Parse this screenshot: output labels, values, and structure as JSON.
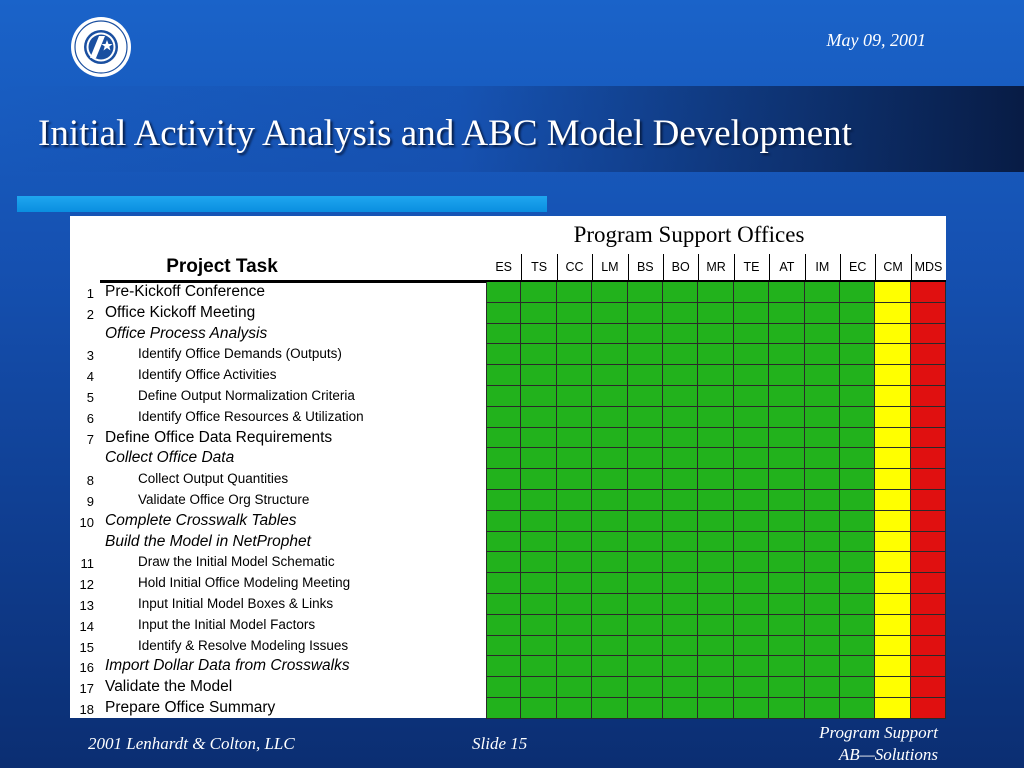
{
  "header": {
    "date": "May 09, 2001",
    "title": "Initial Activity Analysis and ABC Model Development"
  },
  "table": {
    "super_header": "Program Support Offices",
    "task_header": "Project Task",
    "offices": [
      {
        "code": "ES",
        "color": "#22b21c"
      },
      {
        "code": "TS",
        "color": "#22b21c"
      },
      {
        "code": "CC",
        "color": "#22b21c"
      },
      {
        "code": "LM",
        "color": "#22b21c"
      },
      {
        "code": "BS",
        "color": "#22b21c"
      },
      {
        "code": "BO",
        "color": "#22b21c"
      },
      {
        "code": "MR",
        "color": "#22b21c"
      },
      {
        "code": "TE",
        "color": "#22b21c"
      },
      {
        "code": "AT",
        "color": "#22b21c"
      },
      {
        "code": "IM",
        "color": "#22b21c"
      },
      {
        "code": "EC",
        "color": "#22b21c"
      },
      {
        "code": "CM",
        "color": "#ffff00"
      },
      {
        "code": "MDS",
        "color": "#e01010"
      }
    ],
    "rows": [
      {
        "num": "1",
        "task": "Pre-Kickoff Conference",
        "level": 0,
        "italic": false
      },
      {
        "num": "2",
        "task": "Office Kickoff Meeting",
        "level": 0,
        "italic": false
      },
      {
        "num": "",
        "task": "Office Process Analysis",
        "level": 0,
        "italic": true
      },
      {
        "num": "3",
        "task": "Identify Office Demands (Outputs)",
        "level": 1,
        "italic": false
      },
      {
        "num": "4",
        "task": "Identify Office Activities",
        "level": 1,
        "italic": false
      },
      {
        "num": "5",
        "task": "Define Output Normalization Criteria",
        "level": 1,
        "italic": false
      },
      {
        "num": "6",
        "task": "Identify Office Resources & Utilization",
        "level": 1,
        "italic": false
      },
      {
        "num": "7",
        "task": "Define Office Data Requirements",
        "level": 0,
        "italic": false
      },
      {
        "num": "",
        "task": "Collect Office Data",
        "level": 0,
        "italic": true
      },
      {
        "num": "8",
        "task": "Collect Output Quantities",
        "level": 1,
        "italic": false
      },
      {
        "num": "9",
        "task": "Validate Office Org Structure",
        "level": 1,
        "italic": false
      },
      {
        "num": "10",
        "task": "Complete Crosswalk Tables",
        "level": 0,
        "italic": true
      },
      {
        "num": "",
        "task": "Build the Model in NetProphet",
        "level": 0,
        "italic": true
      },
      {
        "num": "11",
        "task": "Draw the Initial Model Schematic",
        "level": 1,
        "italic": false
      },
      {
        "num": "12",
        "task": "Hold Initial Office Modeling Meeting",
        "level": 1,
        "italic": false
      },
      {
        "num": "13",
        "task": "Input Initial Model Boxes & Links",
        "level": 1,
        "italic": false
      },
      {
        "num": "14",
        "task": "Input the Initial Model Factors",
        "level": 1,
        "italic": false
      },
      {
        "num": "15",
        "task": "Identify & Resolve Modeling Issues",
        "level": 1,
        "italic": false
      },
      {
        "num": "16",
        "task": "Import Dollar Data from Crosswalks",
        "level": 0,
        "italic": true
      },
      {
        "num": "17",
        "task": "Validate the Model",
        "level": 0,
        "italic": false
      },
      {
        "num": "18",
        "task": "Prepare Office Summary",
        "level": 0,
        "italic": false
      }
    ]
  },
  "footer": {
    "copyright": "2001 Lenhardt & Colton, LLC",
    "slide": "Slide 15",
    "right_line1": "Program Support",
    "right_line2": "AB—Solutions"
  }
}
